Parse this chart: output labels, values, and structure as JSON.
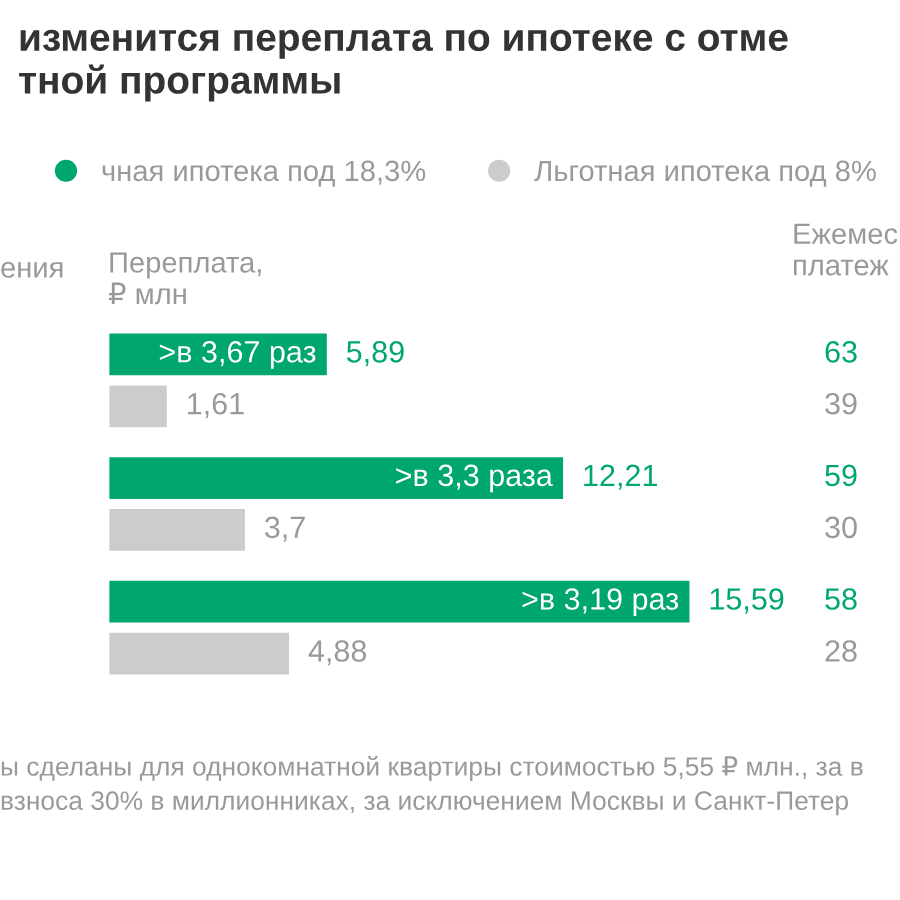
{
  "chart_data": {
    "type": "bar",
    "orientation": "horizontal",
    "title": "изменится переплата по ипотеке с отме\nтной программы",
    "xlabel": "Переплата,\n₽ млн",
    "categories": [
      null,
      null,
      null
    ],
    "series": [
      {
        "name": "чная ипотека под 18,3%",
        "color": "#00a76d",
        "values": [
          5.89,
          12.21,
          15.59
        ],
        "value_labels": [
          "5,89",
          "12,21",
          "15,59"
        ]
      },
      {
        "name": "Льготная ипотека под 8%",
        "color": "#cccccc",
        "values": [
          1.61,
          3.7,
          4.88
        ],
        "value_labels": [
          "1,61",
          "3,7",
          "4,88"
        ]
      }
    ],
    "annotations": [
      {
        "text": ">в 3,67 раз",
        "x": 5.89
      },
      {
        "text": ">в 3,3 раза",
        "x": 12.21
      },
      {
        "text": ">в 3,19 раз",
        "x": 15.59
      },
      "ения",
      "Ежемес\nплатеж",
      "63",
      "39",
      "59",
      "30",
      "58",
      "28",
      "ы сделаны для однокомнатной квартиры стоимостью 5,55 ₽ млн., за в\nвзноса 30% в миллионниках, за исключением Москвы и Санкт-Петер"
    ],
    "legend": "top",
    "tick_labels": false,
    "grid": false
  }
}
